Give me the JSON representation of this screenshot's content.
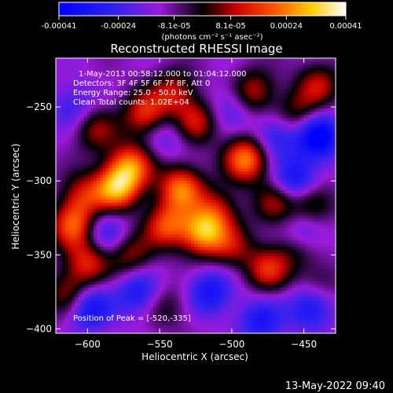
{
  "colors": {
    "background": "#000000",
    "text": "#ffffff"
  },
  "colorbar": {
    "tick_labels": [
      "-0.00041",
      "-0.00024",
      "-8.1e-05",
      "8.1e-05",
      "0.00024",
      "0.00041"
    ],
    "min": -0.00041,
    "max": 0.00041,
    "units": "(photons cm⁻² s⁻¹ asec⁻²)",
    "colormap": "rainbow-blue-to-white (blue, purple, dark, red, orange, yellow, white)"
  },
  "chart_data": {
    "type": "heatmap",
    "title": "Reconstructed RHESSI Image",
    "xlabel": "Heliocentric X (arcsec)",
    "ylabel": "Heliocentric Y (arcsec)",
    "xlim": [
      -622,
      -428
    ],
    "ylim": [
      -403,
      -217
    ],
    "x_ticks": [
      -600,
      -550,
      -500,
      -450
    ],
    "y_ticks": [
      -250,
      -300,
      -350,
      -400
    ],
    "x_tick_labels": [
      "−600",
      "−550",
      "−500",
      "−450"
    ],
    "y_tick_labels": [
      "−250",
      "−300",
      "−350",
      "−400"
    ],
    "annotations": [
      "1-May-2013 00:58:12.000 to 01:04:12.000",
      "Detectors: 3F 4F 5F 6F 7F 8F, Att 0",
      "Energy Range: 25.0 - 50.0 keV",
      "Clean     Total counts: 1.02E+04"
    ],
    "peak_label": "Position of Peak = [-520,-335]",
    "peak_position": [
      -520,
      -335
    ],
    "grid": false,
    "legend": "none",
    "blobs": [
      {
        "x": -580,
        "y": -305,
        "value": 1.0
      },
      {
        "x": -570,
        "y": -290,
        "value": 0.85
      },
      {
        "x": -535,
        "y": -305,
        "value": 0.9
      },
      {
        "x": -520,
        "y": -335,
        "value": 1.0
      },
      {
        "x": -545,
        "y": -330,
        "value": 0.75
      },
      {
        "x": -610,
        "y": -330,
        "value": 0.8
      },
      {
        "x": -603,
        "y": -310,
        "value": 0.55
      },
      {
        "x": -600,
        "y": -355,
        "value": 0.65
      },
      {
        "x": -612,
        "y": -377,
        "value": 0.6
      },
      {
        "x": -570,
        "y": -350,
        "value": 0.5
      },
      {
        "x": -525,
        "y": -260,
        "value": 0.6
      },
      {
        "x": -540,
        "y": -240,
        "value": 0.55
      },
      {
        "x": -510,
        "y": -320,
        "value": 0.5
      },
      {
        "x": -490,
        "y": -285,
        "value": 0.95
      },
      {
        "x": -485,
        "y": -240,
        "value": 0.6
      },
      {
        "x": -500,
        "y": -345,
        "value": 0.45
      },
      {
        "x": -470,
        "y": -315,
        "value": 0.5
      },
      {
        "x": -455,
        "y": -255,
        "value": 0.45
      },
      {
        "x": -445,
        "y": -315,
        "value": 0.6
      },
      {
        "x": -455,
        "y": -345,
        "value": 0.4
      },
      {
        "x": -475,
        "y": -360,
        "value": 0.65
      },
      {
        "x": -545,
        "y": -385,
        "value": 0.3
      },
      {
        "x": -440,
        "y": -235,
        "value": 0.55
      },
      {
        "x": -560,
        "y": -255,
        "value": 0.7
      },
      {
        "x": -595,
        "y": -265,
        "value": 0.5
      },
      {
        "x": -440,
        "y": -370,
        "value": 0.35
      }
    ],
    "negative_blobs": [
      {
        "x": -440,
        "y": -270,
        "value": -0.9
      },
      {
        "x": -455,
        "y": -300,
        "value": -0.7
      },
      {
        "x": -445,
        "y": -385,
        "value": -0.65
      },
      {
        "x": -600,
        "y": -385,
        "value": -0.75
      },
      {
        "x": -470,
        "y": -270,
        "value": -0.5
      },
      {
        "x": -515,
        "y": -375,
        "value": -0.6
      },
      {
        "x": -450,
        "y": -335,
        "value": -0.5
      },
      {
        "x": -565,
        "y": -375,
        "value": -0.55
      },
      {
        "x": -610,
        "y": -250,
        "value": -0.4
      },
      {
        "x": -500,
        "y": -250,
        "value": -0.35
      },
      {
        "x": -545,
        "y": -270,
        "value": -0.3
      },
      {
        "x": -588,
        "y": -335,
        "value": -0.45
      },
      {
        "x": -480,
        "y": -395,
        "value": -0.55
      }
    ]
  },
  "footer": {
    "timestamp": "13-May-2022 09:40"
  }
}
